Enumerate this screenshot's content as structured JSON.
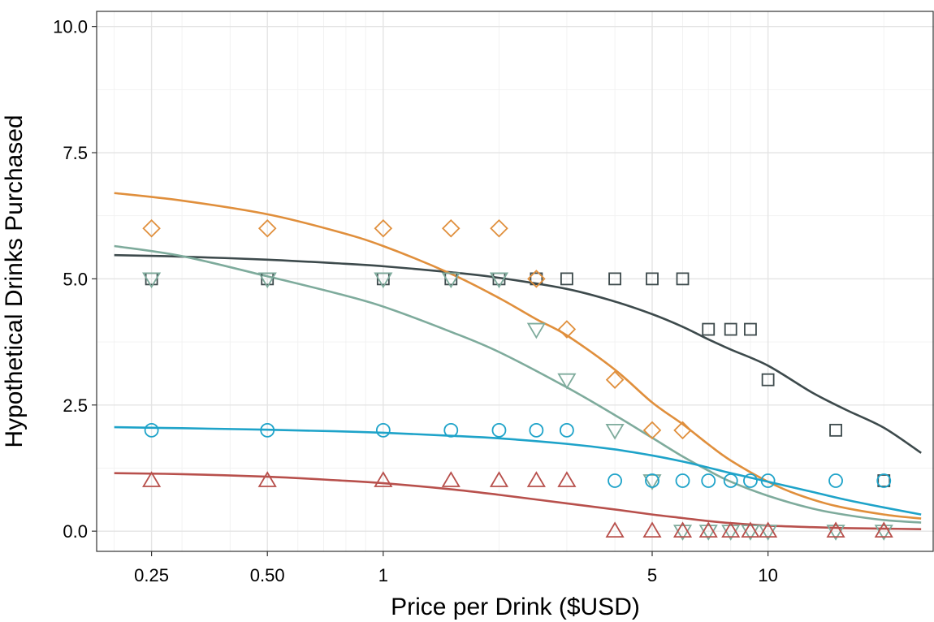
{
  "chart_data": {
    "type": "scatter",
    "xlabel": "Price per Drink ($USD)",
    "ylabel": "Hypothetical Drinks Purchased",
    "x_scale": "log",
    "xlim": [
      0.18,
      27
    ],
    "ylim": [
      -0.4,
      10.3
    ],
    "x_ticks": [
      {
        "value": 0.25,
        "label": "0.25"
      },
      {
        "value": 0.5,
        "label": "0.50"
      },
      {
        "value": 1,
        "label": "1"
      },
      {
        "value": 5,
        "label": "5"
      },
      {
        "value": 10,
        "label": "10"
      }
    ],
    "y_ticks": [
      {
        "value": 0,
        "label": "0.0"
      },
      {
        "value": 2.5,
        "label": "2.5"
      },
      {
        "value": 5,
        "label": "5.0"
      },
      {
        "value": 7.5,
        "label": "7.5"
      },
      {
        "value": 10,
        "label": "10.0"
      }
    ],
    "grid": true,
    "legend": "none",
    "series": [
      {
        "shape": "square",
        "color": "#3d4a4c",
        "points": [
          [
            0.25,
            5
          ],
          [
            0.5,
            5
          ],
          [
            1,
            5
          ],
          [
            1.5,
            5
          ],
          [
            2,
            5
          ],
          [
            2.5,
            5
          ],
          [
            3,
            5
          ],
          [
            4,
            5
          ],
          [
            5,
            5
          ],
          [
            6,
            5
          ],
          [
            7,
            4
          ],
          [
            8,
            4
          ],
          [
            9,
            4
          ],
          [
            10,
            3
          ],
          [
            15,
            2
          ],
          [
            20,
            1
          ]
        ],
        "curve": [
          [
            0.2,
            5.47
          ],
          [
            0.3,
            5.44
          ],
          [
            0.5,
            5.38
          ],
          [
            0.75,
            5.31
          ],
          [
            1,
            5.25
          ],
          [
            1.5,
            5.13
          ],
          [
            2,
            5.02
          ],
          [
            3,
            4.8
          ],
          [
            4,
            4.55
          ],
          [
            5,
            4.3
          ],
          [
            6,
            4.05
          ],
          [
            7,
            3.8
          ],
          [
            8,
            3.6
          ],
          [
            10,
            3.28
          ],
          [
            13,
            2.75
          ],
          [
            16,
            2.4
          ],
          [
            20,
            2.05
          ],
          [
            25,
            1.55
          ]
        ]
      },
      {
        "shape": "diamond",
        "color": "#e08f3c",
        "points": [
          [
            0.25,
            6
          ],
          [
            0.5,
            6
          ],
          [
            1,
            6
          ],
          [
            1.5,
            6
          ],
          [
            2,
            6
          ],
          [
            2.5,
            5
          ],
          [
            3,
            4
          ],
          [
            4,
            3
          ],
          [
            5,
            2
          ],
          [
            6,
            2
          ]
        ],
        "curve": [
          [
            0.2,
            6.7
          ],
          [
            0.3,
            6.55
          ],
          [
            0.5,
            6.28
          ],
          [
            0.75,
            5.95
          ],
          [
            1,
            5.65
          ],
          [
            1.5,
            5.1
          ],
          [
            2,
            4.62
          ],
          [
            2.5,
            4.2
          ],
          [
            3,
            3.88
          ],
          [
            4,
            3.2
          ],
          [
            5,
            2.55
          ],
          [
            6,
            2.12
          ],
          [
            7,
            1.72
          ],
          [
            8,
            1.4
          ],
          [
            10,
            0.98
          ],
          [
            12,
            0.72
          ],
          [
            15,
            0.5
          ],
          [
            20,
            0.33
          ],
          [
            25,
            0.25
          ]
        ]
      },
      {
        "shape": "triangle-down",
        "color": "#7eab9c",
        "points": [
          [
            0.25,
            5
          ],
          [
            0.5,
            5
          ],
          [
            1,
            5
          ],
          [
            1.5,
            5
          ],
          [
            2,
            5
          ],
          [
            2.5,
            4
          ],
          [
            3,
            3
          ],
          [
            4,
            2
          ],
          [
            5,
            1
          ],
          [
            6,
            0
          ],
          [
            7,
            0
          ],
          [
            8,
            0
          ],
          [
            9,
            0
          ],
          [
            10,
            0
          ],
          [
            15,
            0
          ],
          [
            20,
            0
          ]
        ],
        "curve": [
          [
            0.2,
            5.65
          ],
          [
            0.3,
            5.45
          ],
          [
            0.5,
            5.05
          ],
          [
            0.75,
            4.72
          ],
          [
            1,
            4.45
          ],
          [
            1.5,
            3.95
          ],
          [
            2,
            3.55
          ],
          [
            3,
            2.85
          ],
          [
            4,
            2.3
          ],
          [
            5,
            1.85
          ],
          [
            6,
            1.48
          ],
          [
            7,
            1.2
          ],
          [
            8,
            0.98
          ],
          [
            10,
            0.7
          ],
          [
            13,
            0.45
          ],
          [
            16,
            0.32
          ],
          [
            20,
            0.22
          ],
          [
            25,
            0.17
          ]
        ]
      },
      {
        "shape": "circle",
        "color": "#1ea3c9",
        "points": [
          [
            0.25,
            2
          ],
          [
            0.5,
            2
          ],
          [
            1,
            2
          ],
          [
            1.5,
            2
          ],
          [
            2,
            2
          ],
          [
            2.5,
            2
          ],
          [
            3,
            2
          ],
          [
            4,
            1
          ],
          [
            5,
            1
          ],
          [
            6,
            1
          ],
          [
            7,
            1
          ],
          [
            8,
            1
          ],
          [
            9,
            1
          ],
          [
            10,
            1
          ],
          [
            15,
            1
          ],
          [
            20,
            1
          ]
        ],
        "curve": [
          [
            0.2,
            2.06
          ],
          [
            0.3,
            2.04
          ],
          [
            0.5,
            2.01
          ],
          [
            0.75,
            1.98
          ],
          [
            1,
            1.95
          ],
          [
            1.5,
            1.89
          ],
          [
            2,
            1.84
          ],
          [
            3,
            1.73
          ],
          [
            4,
            1.62
          ],
          [
            5,
            1.5
          ],
          [
            6,
            1.38
          ],
          [
            7,
            1.26
          ],
          [
            8,
            1.15
          ],
          [
            10,
            0.98
          ],
          [
            13,
            0.78
          ],
          [
            16,
            0.62
          ],
          [
            20,
            0.47
          ],
          [
            25,
            0.33
          ]
        ]
      },
      {
        "shape": "triangle-up",
        "color": "#b8504c",
        "points": [
          [
            0.25,
            1
          ],
          [
            0.5,
            1
          ],
          [
            1,
            1
          ],
          [
            1.5,
            1
          ],
          [
            2,
            1
          ],
          [
            2.5,
            1
          ],
          [
            3,
            1
          ],
          [
            4,
            0
          ],
          [
            5,
            0
          ],
          [
            6,
            0
          ],
          [
            7,
            0
          ],
          [
            8,
            0
          ],
          [
            9,
            0
          ],
          [
            10,
            0
          ],
          [
            15,
            0
          ],
          [
            20,
            0
          ]
        ],
        "curve": [
          [
            0.2,
            1.15
          ],
          [
            0.3,
            1.13
          ],
          [
            0.5,
            1.08
          ],
          [
            0.75,
            1.01
          ],
          [
            1,
            0.95
          ],
          [
            1.5,
            0.83
          ],
          [
            2,
            0.72
          ],
          [
            3,
            0.55
          ],
          [
            4,
            0.43
          ],
          [
            5,
            0.33
          ],
          [
            6,
            0.26
          ],
          [
            7,
            0.2
          ],
          [
            8,
            0.16
          ],
          [
            10,
            0.11
          ],
          [
            13,
            0.08
          ],
          [
            16,
            0.06
          ],
          [
            20,
            0.05
          ],
          [
            25,
            0.04
          ]
        ]
      }
    ]
  }
}
